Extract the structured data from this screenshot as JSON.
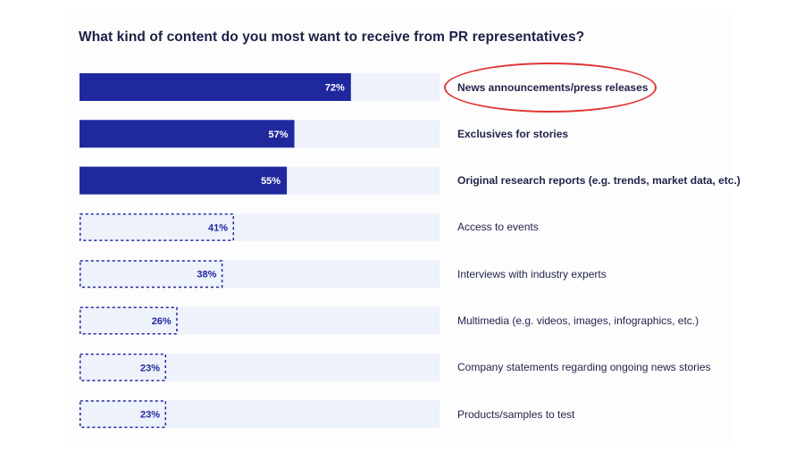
{
  "chart_data": {
    "type": "bar",
    "orientation": "horizontal",
    "title": "What kind of content do you most want to receive from PR representatives?",
    "categories": [
      "News announcements/press releases",
      "Exclusives for stories",
      "Original research reports (e.g. trends, market data, etc.)",
      "Access to events",
      "Interviews with industry experts",
      "Multimedia (e.g. videos, images, infographics, etc.)",
      "Company statements regarding ongoing news stories",
      "Products/samples to test"
    ],
    "values": [
      72,
      57,
      55,
      41,
      38,
      26,
      23,
      23
    ],
    "value_labels": [
      "72%",
      "57%",
      "55%",
      "41%",
      "38%",
      "26%",
      "23%",
      "23%"
    ],
    "bar_style": [
      "solid",
      "solid",
      "solid",
      "dashed",
      "dashed",
      "dashed",
      "dashed",
      "dashed"
    ],
    "xlim": [
      0,
      100
    ],
    "highlighted_category": "News announcements/press releases",
    "colors": {
      "bar_fill": "#20289e",
      "track": "#eef2fb",
      "dashed_outline": "#20289e",
      "highlight_ring": "#e03535",
      "title_text": "#1c2045"
    }
  }
}
